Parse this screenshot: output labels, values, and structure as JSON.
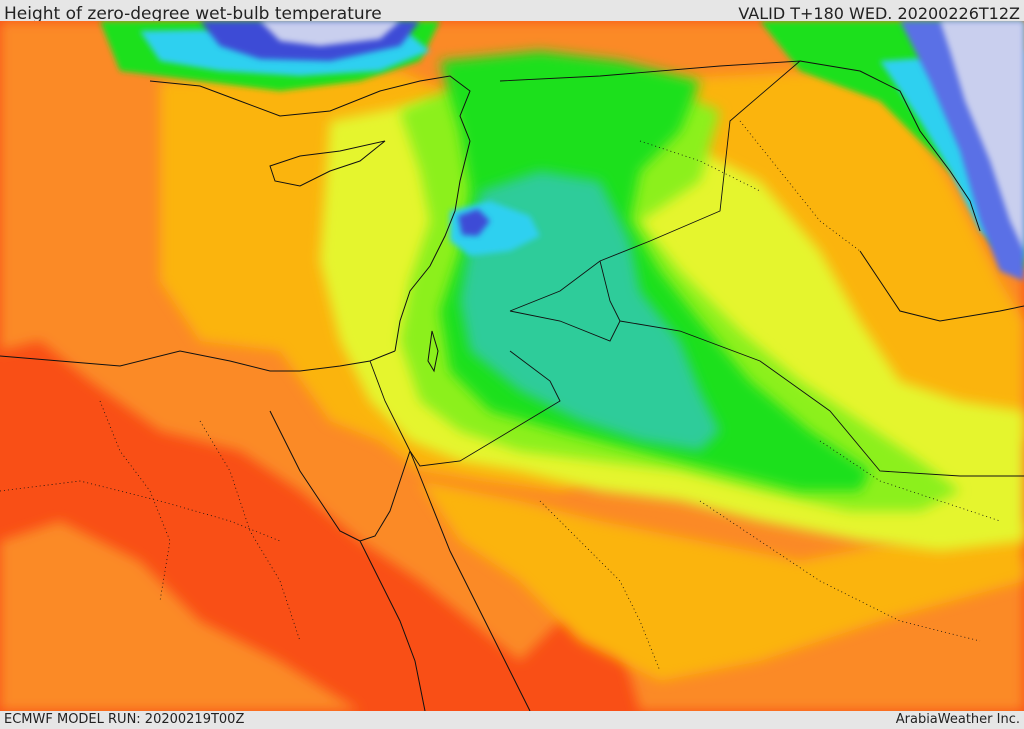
{
  "header": {
    "title": "Height of zero-degree wet-bulb temperature",
    "valid": "VALID T+180 WED. 20200226T12Z"
  },
  "footer": {
    "model_run": "ECMWF MODEL RUN: 20200219T00Z",
    "credit": "ArabiaWeather Inc."
  },
  "map": {
    "region": "Eastern Mediterranean / Middle East",
    "colors": {
      "very_low": "#c9cfee",
      "low_blue": "#5a6fe6",
      "blue": "#3c4bd6",
      "cyan": "#2fd0f0",
      "teal": "#2ecc9a",
      "green": "#1fe01f",
      "light_green": "#8cf01f",
      "yellow_green": "#e5f52e",
      "yellow_orange": "#fbb40e",
      "orange": "#fb8a28",
      "red_orange": "#f94f16",
      "land_border": "#111111"
    }
  }
}
